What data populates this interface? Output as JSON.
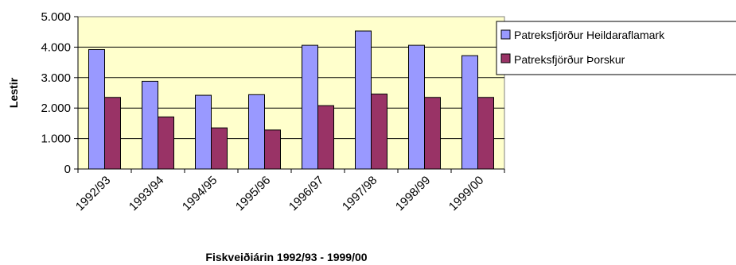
{
  "chart_data": {
    "type": "bar",
    "categories": [
      "1992/93",
      "1993/94",
      "1994/95",
      "1995/96",
      "1996/97",
      "1997/98",
      "1998/99",
      "1999/00"
    ],
    "series": [
      {
        "name": "Patreksfjörður Heildaraflamark",
        "color": "#9999ff",
        "values": [
          3920,
          2880,
          2420,
          2440,
          4060,
          4530,
          4060,
          3720
        ]
      },
      {
        "name": "Patreksfjörður Þorskur",
        "color": "#993366",
        "values": [
          2350,
          1710,
          1350,
          1280,
          2080,
          2460,
          2350,
          2350
        ]
      }
    ],
    "xlabel": "Fiskveiðiárin 1992/93 - 1999/00",
    "ylabel": "Lestir",
    "ylim": [
      0,
      5000
    ],
    "yticks": [
      0,
      1000,
      2000,
      3000,
      4000,
      5000
    ],
    "ytick_labels": [
      "0",
      "1.000",
      "2.000",
      "3.000",
      "4.000",
      "5.000"
    ],
    "plot_background": "#ffffcc",
    "grid": true,
    "legend": "right"
  }
}
